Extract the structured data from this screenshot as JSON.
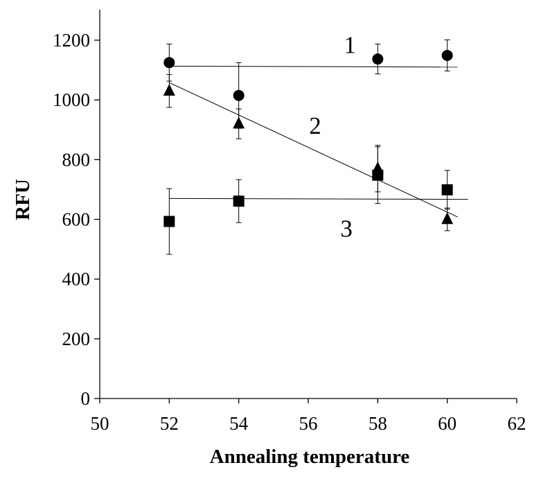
{
  "chart_data": {
    "type": "scatter",
    "title": "",
    "xlabel": "Annealing temperature",
    "ylabel": "RFU",
    "xlim": [
      50,
      62
    ],
    "ylim": [
      0,
      1200
    ],
    "xticks": [
      50,
      52,
      54,
      56,
      58,
      60,
      62
    ],
    "yticks": [
      0,
      200,
      400,
      600,
      800,
      1000,
      1200
    ],
    "grid": false,
    "legend": "none",
    "series": [
      {
        "label": "1",
        "marker": "circle",
        "x": [
          52,
          54,
          58,
          60
        ],
        "y": [
          1125,
          1015,
          1137,
          1149
        ],
        "err": [
          62,
          110,
          50,
          52
        ],
        "trend": {
          "x": [
            52,
            60.3
          ],
          "y": [
            1113,
            1110
          ]
        }
      },
      {
        "label": "2",
        "marker": "triangle",
        "x": [
          52,
          54,
          58,
          60
        ],
        "y": [
          1030,
          920,
          770,
          600
        ],
        "err": [
          55,
          50,
          78,
          38
        ],
        "trend": {
          "x": [
            52,
            60.3
          ],
          "y": [
            1058,
            608
          ]
        }
      },
      {
        "label": "3",
        "marker": "square",
        "x": [
          52,
          54,
          58,
          60
        ],
        "y": [
          593,
          661,
          748,
          699
        ],
        "err": [
          110,
          72,
          95,
          65
        ],
        "trend": {
          "x": [
            52,
            60.6
          ],
          "y": [
            670,
            667
          ]
        }
      }
    ],
    "annotations": [
      {
        "text": "1",
        "x": 57.2,
        "y": 1185
      },
      {
        "text": "2",
        "x": 56.2,
        "y": 915
      },
      {
        "text": "3",
        "x": 57.1,
        "y": 570
      }
    ]
  }
}
